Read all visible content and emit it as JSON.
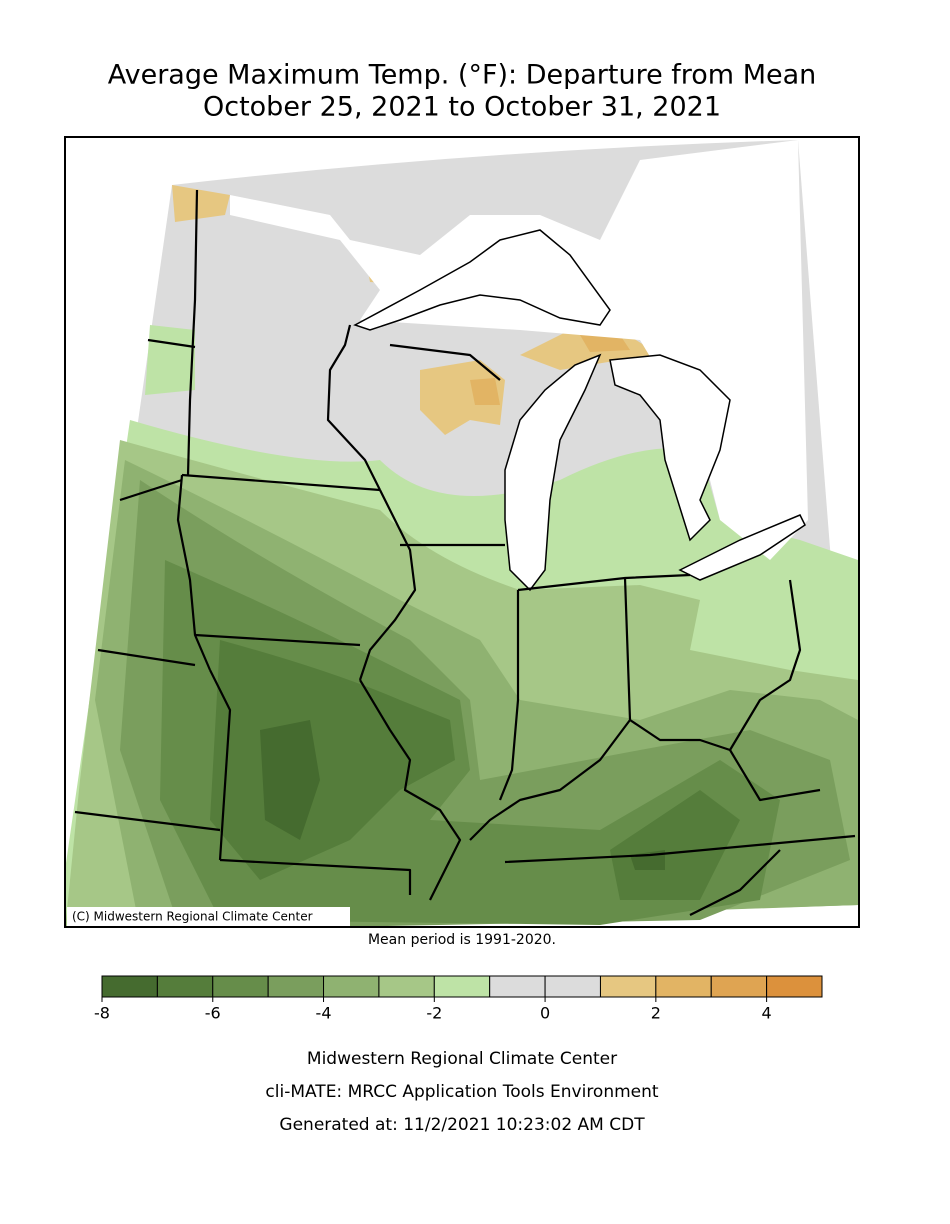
{
  "header": {
    "title_lines": [
      "Average Maximum Temp. (°F): Departure from Mean",
      "October 25, 2021 to October 31, 2021"
    ]
  },
  "map": {
    "copyright": "(C) Midwestern Regional Climate Center",
    "note": "Mean period is 1991-2020."
  },
  "legend": {
    "bins": [
      -8,
      -7,
      -6,
      -5,
      -4,
      -3,
      -2,
      -1,
      0,
      1,
      2,
      3,
      4,
      5
    ],
    "colors": [
      "#456b2f",
      "#557d3b",
      "#668d4a",
      "#7a9e5d",
      "#8fb271",
      "#a6c787",
      "#bee3a6",
      "#dcdcdc",
      "#dcdcdc",
      "#e6c781",
      "#e2b464",
      "#dfa452",
      "#dc913c"
    ],
    "ticks": [
      -8,
      -6,
      -4,
      -2,
      0,
      2,
      4
    ]
  },
  "footer": {
    "lines": [
      "Midwestern Regional Climate Center",
      "cli-MATE: MRCC Application Tools Environment",
      "Generated at: 11/2/2021 10:23:02 AM CDT"
    ]
  }
}
